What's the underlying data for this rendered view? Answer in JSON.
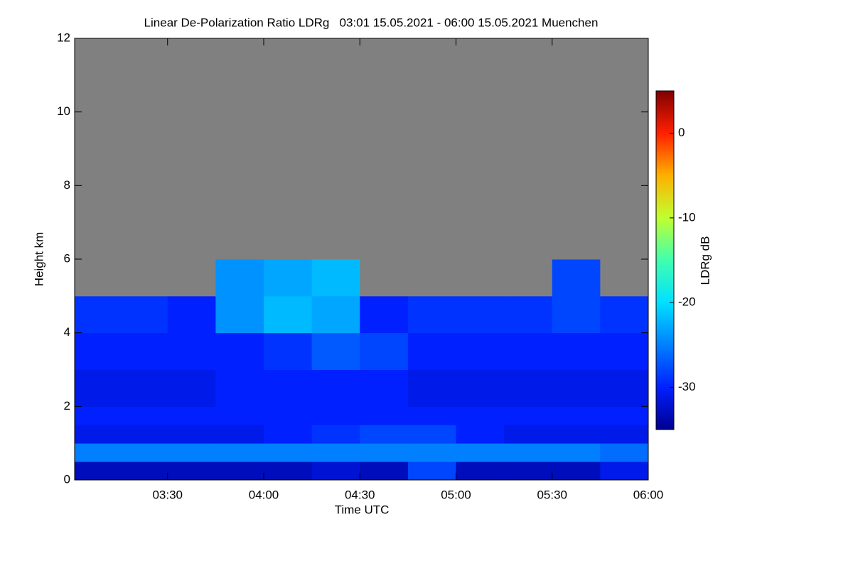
{
  "chart_data": {
    "type": "heatmap",
    "title": "Linear De-Polarization Ratio LDRg   03:01 15.05.2021 - 06:00 15.05.2021 Muenchen",
    "x_label": "Time UTC",
    "y_label": "Height km",
    "colorbar_label": "LDRg dB",
    "xlim": [
      "03:01",
      "06:00"
    ],
    "xticks": [
      "03:30",
      "04:00",
      "04:30",
      "05:00",
      "05:30",
      "06:00"
    ],
    "ylim": [
      0,
      12
    ],
    "yticks": [
      0,
      2,
      4,
      6,
      8,
      10,
      12
    ],
    "zlim": [
      -35,
      5
    ],
    "zticks": [
      -30,
      -20,
      -10,
      0
    ],
    "colormap": [
      "#000090",
      "#0020ff",
      "#0080ff",
      "#00e0ff",
      "#40ffb0",
      "#c0ff30",
      "#ffb000",
      "#ff2000",
      "#800000"
    ],
    "missing_color": "#808080",
    "x_edges": [
      "03:01",
      "03:15",
      "03:30",
      "03:45",
      "04:00",
      "04:15",
      "04:30",
      "04:45",
      "05:00",
      "05:15",
      "05:30",
      "05:45",
      "06:00"
    ],
    "y_edges": [
      0,
      0.5,
      1,
      1.5,
      2,
      3,
      4,
      5,
      6,
      12
    ],
    "z": [
      [
        -33,
        -33,
        -33,
        -33,
        -33,
        -32,
        -33,
        -28,
        -33,
        -33,
        -33,
        -31
      ],
      [
        -25,
        -25,
        -25,
        -25,
        -25,
        -25,
        -25,
        -25,
        -25,
        -25,
        -25,
        -26
      ],
      [
        -31,
        -31,
        -31,
        -31,
        -30,
        -29,
        -28,
        -28,
        -30,
        -31,
        -31,
        -31
      ],
      [
        -30,
        -30,
        -30,
        -30,
        -30,
        -30,
        -30,
        -30,
        -30,
        -30,
        -30,
        -30
      ],
      [
        -31,
        -31,
        -31,
        -30,
        -30,
        -30,
        -30,
        -31,
        -31,
        -31,
        -31,
        -31
      ],
      [
        -30,
        -30,
        -30,
        -30,
        -29,
        -27,
        -28,
        -30,
        -30,
        -30,
        -30,
        -30
      ],
      [
        -29,
        -29,
        -30,
        -24,
        -22,
        -23,
        -30,
        -29,
        -29,
        -29,
        -28,
        -29
      ],
      [
        null,
        null,
        null,
        -24,
        -23,
        -22,
        null,
        null,
        null,
        null,
        -28,
        null
      ],
      [
        null,
        null,
        null,
        null,
        null,
        null,
        null,
        null,
        null,
        null,
        null,
        null
      ]
    ]
  }
}
